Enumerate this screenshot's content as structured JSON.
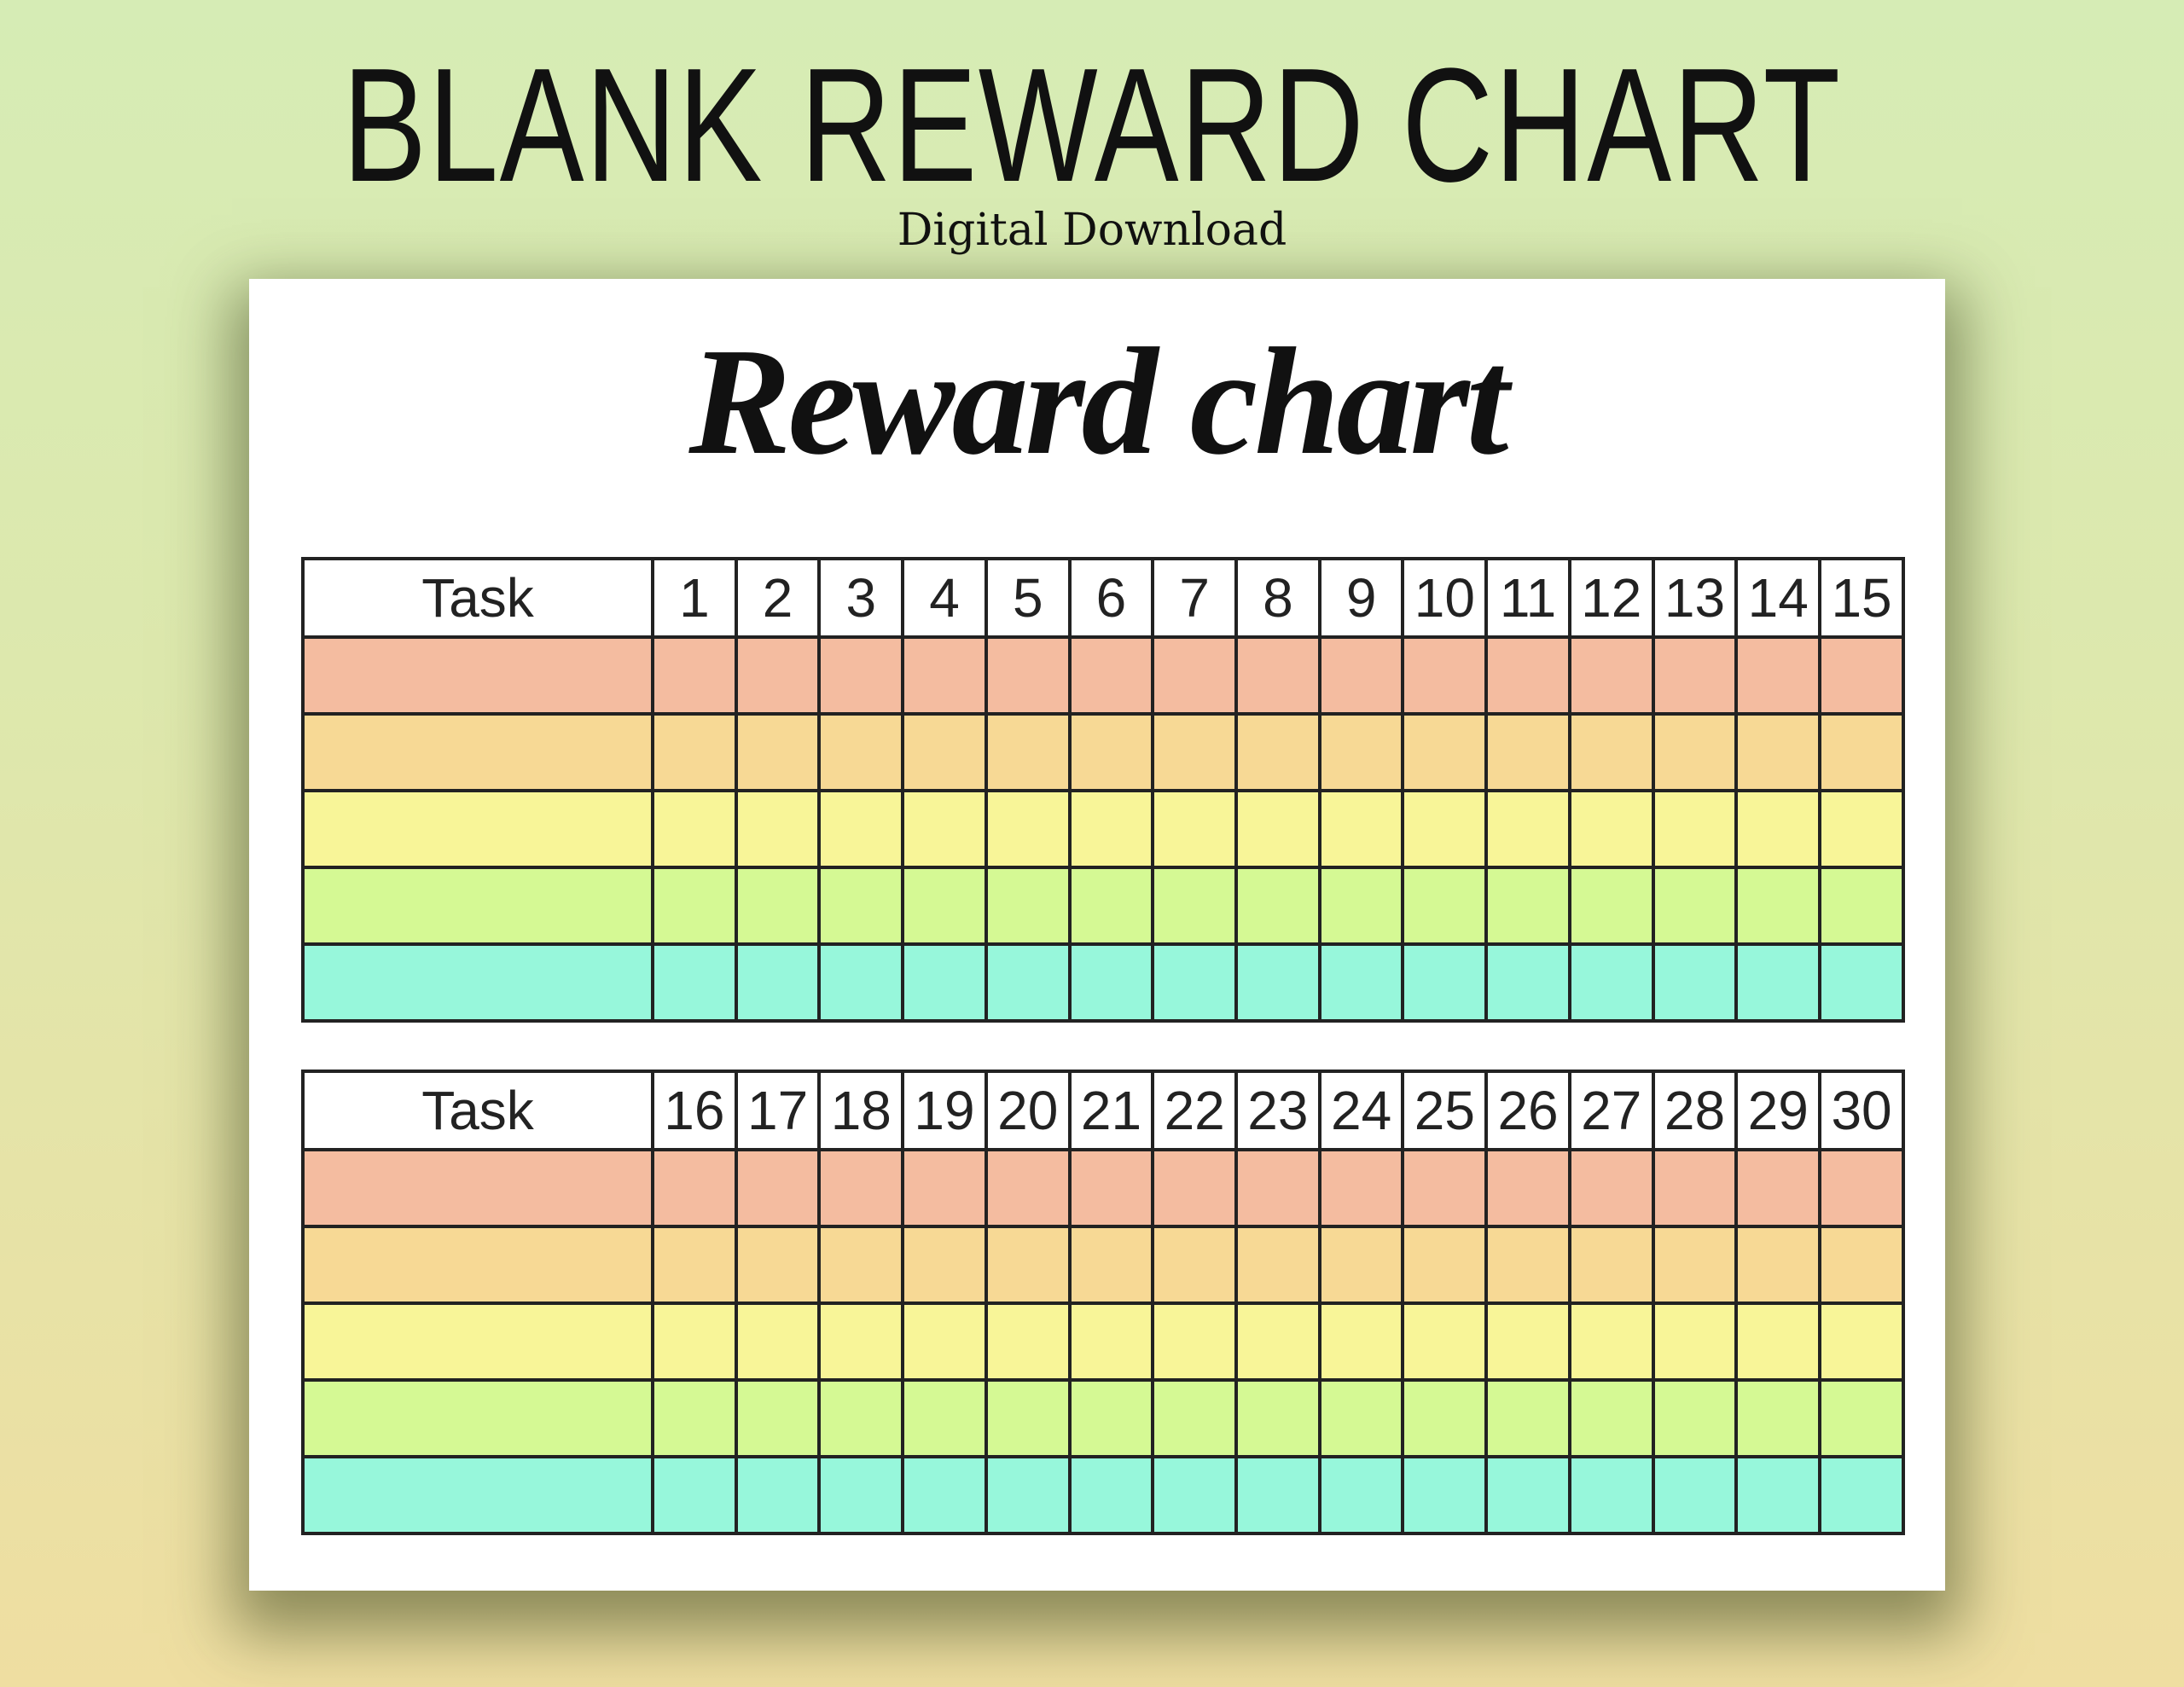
{
  "header": {
    "title": "BLANK REWARD CHART",
    "subtitle": "Digital Download"
  },
  "paper": {
    "title": "Reward chart"
  },
  "row_colors": [
    "#f4bca0",
    "#f7d995",
    "#f8f598",
    "#d5f994",
    "#97f7db"
  ],
  "tables": [
    {
      "task_label": "Task",
      "days": [
        "1",
        "2",
        "3",
        "4",
        "5",
        "6",
        "7",
        "8",
        "9",
        "10",
        "11",
        "12",
        "13",
        "14",
        "15"
      ]
    },
    {
      "task_label": "Task",
      "days": [
        "16",
        "17",
        "18",
        "19",
        "20",
        "21",
        "22",
        "23",
        "24",
        "25",
        "26",
        "27",
        "28",
        "29",
        "30"
      ]
    }
  ]
}
